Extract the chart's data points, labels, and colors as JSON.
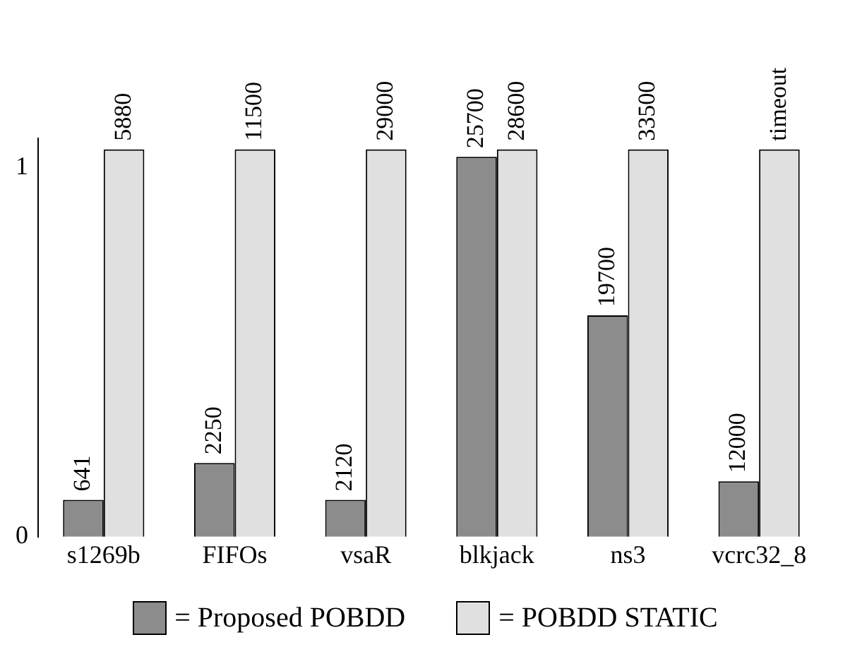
{
  "chart_data": {
    "type": "bar",
    "categories": [
      "s1269b",
      "FIFOs",
      "vsaR",
      "blkjack",
      "ns3",
      "vcrc32_8"
    ],
    "series": [
      {
        "name": "= Proposed POBDD",
        "color": "#8c8c8c",
        "values": [
          0.1,
          0.2,
          0.1,
          1.03,
          0.6,
          0.15
        ]
      },
      {
        "name": "= POBDD STATIC",
        "color": "#e0e0e0",
        "values": [
          1.05,
          1.05,
          1.05,
          1.05,
          1.05,
          1.05
        ]
      }
    ],
    "annotations": [
      {
        "text": "641",
        "x": "s1269b",
        "y": 0.1
      },
      {
        "text": "2250",
        "x": "FIFOs",
        "y": 0.2
      },
      {
        "text": "2120",
        "x": "vsaR",
        "y": 0.1
      },
      {
        "text": "25700",
        "x": "blkjack",
        "y": 1.03
      },
      {
        "text": "19700",
        "x": "ns3",
        "y": 0.6
      },
      {
        "text": "12000",
        "x": "vcrc32_8",
        "y": 0.15
      },
      {
        "text": "5880",
        "x": "s1269b",
        "y": 1.05
      },
      {
        "text": "11500",
        "x": "FIFOs",
        "y": 1.05
      },
      {
        "text": "29000",
        "x": "vsaR",
        "y": 1.05
      },
      {
        "text": "28600",
        "x": "blkjack",
        "y": 1.05
      },
      {
        "text": "33500",
        "x": "ns3",
        "y": 1.05
      },
      {
        "text": "timeout",
        "x": "vcrc32_8",
        "y": 1.05
      }
    ],
    "ylim": [
      0,
      1.08
    ],
    "yticks": [
      0,
      1
    ],
    "grid": false,
    "legend": "bottom"
  }
}
